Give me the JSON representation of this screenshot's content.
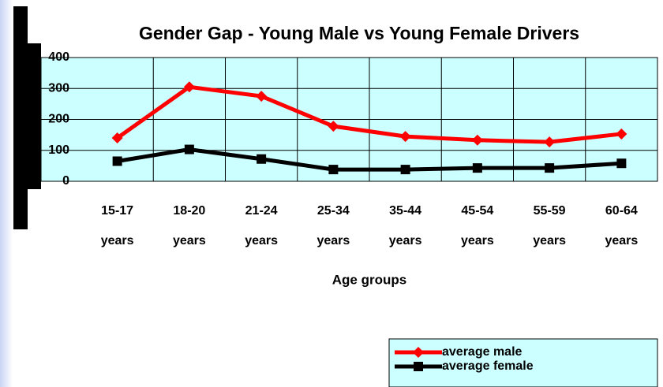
{
  "chart_data": {
    "type": "line",
    "title": "Gender Gap - Young Male vs Young Female Drivers",
    "x_label": "Age groups",
    "categories": [
      "15-17 years",
      "18-20 years",
      "21-24 years",
      "25-34 years",
      "35-44 years",
      "45-54 years",
      "55-59 years",
      "60-64 years"
    ],
    "series": [
      {
        "name": "average male",
        "color": "#ff0000",
        "values": [
          140,
          305,
          275,
          178,
          145,
          133,
          127,
          153
        ]
      },
      {
        "name": "average female",
        "color": "#000000",
        "values": [
          65,
          103,
          72,
          38,
          38,
          43,
          43,
          58
        ]
      }
    ],
    "ylim": [
      0,
      400
    ],
    "yticks": [
      0,
      100,
      200,
      300,
      400
    ],
    "grid": true,
    "legend": "bottom-right"
  }
}
